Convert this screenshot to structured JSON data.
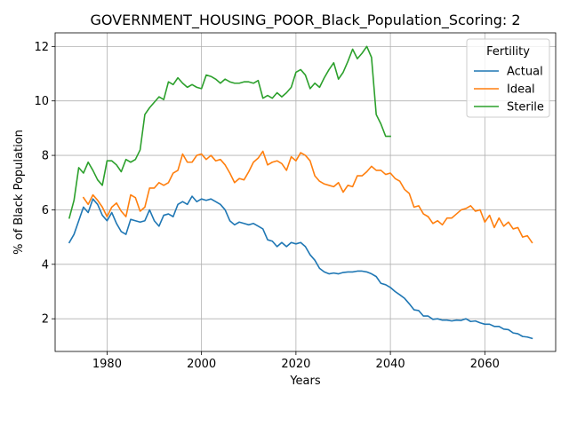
{
  "chart_data": {
    "type": "line",
    "title": "GOVERNMENT_HOUSING_POOR_Black_Population_Scoring: 2",
    "xlabel": "Years",
    "ylabel": "% of Black Population",
    "xlim": [
      1969,
      2075
    ],
    "ylim": [
      0.8,
      12.5
    ],
    "xticks": [
      1980,
      2000,
      2020,
      2040,
      2060
    ],
    "yticks": [
      2,
      4,
      6,
      8,
      10,
      12
    ],
    "grid": true,
    "legend": {
      "title": "Fertility",
      "placement": "top-right"
    },
    "series": [
      {
        "name": "Actual",
        "color": "#1f77b4",
        "x": [
          1972,
          1973,
          1974,
          1975,
          1976,
          1977,
          1978,
          1979,
          1980,
          1981,
          1982,
          1983,
          1984,
          1985,
          1986,
          1987,
          1988,
          1989,
          1990,
          1991,
          1992,
          1993,
          1994,
          1995,
          1996,
          1997,
          1998,
          1999,
          2000,
          2001,
          2002,
          2003,
          2004,
          2005,
          2006,
          2007,
          2008,
          2009,
          2010,
          2011,
          2012,
          2013,
          2014,
          2015,
          2016,
          2017,
          2018,
          2019,
          2020,
          2021,
          2022,
          2023,
          2024,
          2025,
          2026,
          2027,
          2028,
          2029,
          2030,
          2031,
          2032,
          2033,
          2034,
          2035,
          2036,
          2037,
          2038,
          2039,
          2040,
          2041,
          2042,
          2043,
          2044,
          2045,
          2046,
          2047,
          2048,
          2049,
          2050,
          2051,
          2052,
          2053,
          2054,
          2055,
          2056,
          2057,
          2058,
          2059,
          2060,
          2061,
          2062,
          2063,
          2064,
          2065,
          2066,
          2067,
          2068,
          2069,
          2070
        ],
        "y": [
          4.8,
          5.1,
          5.6,
          6.1,
          5.9,
          6.4,
          6.2,
          5.8,
          5.6,
          5.9,
          5.5,
          5.2,
          5.1,
          5.65,
          5.6,
          5.55,
          5.6,
          6.0,
          5.6,
          5.4,
          5.8,
          5.85,
          5.75,
          6.2,
          6.3,
          6.2,
          6.5,
          6.3,
          6.4,
          6.35,
          6.4,
          6.3,
          6.2,
          6.0,
          5.6,
          5.45,
          5.55,
          5.5,
          5.45,
          5.5,
          5.4,
          5.3,
          4.9,
          4.85,
          4.65,
          4.8,
          4.65,
          4.8,
          4.75,
          4.8,
          4.65,
          4.35,
          4.15,
          3.85,
          3.72,
          3.65,
          3.68,
          3.65,
          3.7,
          3.72,
          3.72,
          3.75,
          3.75,
          3.72,
          3.65,
          3.55,
          3.3,
          3.25,
          3.15,
          3.0,
          2.88,
          2.75,
          2.55,
          2.33,
          2.3,
          2.1,
          2.1,
          1.98,
          2.0,
          1.95,
          1.95,
          1.92,
          1.95,
          1.94,
          2.0,
          1.9,
          1.92,
          1.85,
          1.8,
          1.8,
          1.72,
          1.72,
          1.62,
          1.6,
          1.48,
          1.45,
          1.35,
          1.33,
          1.28
        ]
      },
      {
        "name": "Ideal",
        "color": "#ff7f0e",
        "x": [
          1975,
          1976,
          1977,
          1978,
          1979,
          1980,
          1981,
          1982,
          1983,
          1984,
          1985,
          1986,
          1987,
          1988,
          1989,
          1990,
          1991,
          1992,
          1993,
          1994,
          1995,
          1996,
          1997,
          1998,
          1999,
          2000,
          2001,
          2002,
          2003,
          2004,
          2005,
          2006,
          2007,
          2008,
          2009,
          2010,
          2011,
          2012,
          2013,
          2014,
          2015,
          2016,
          2017,
          2018,
          2019,
          2020,
          2021,
          2022,
          2023,
          2024,
          2025,
          2026,
          2027,
          2028,
          2029,
          2030,
          2031,
          2032,
          2033,
          2034,
          2035,
          2036,
          2037,
          2038,
          2039,
          2040,
          2041,
          2042,
          2043,
          2044,
          2045,
          2046,
          2047,
          2048,
          2049,
          2050,
          2051,
          2052,
          2053,
          2054,
          2055,
          2056,
          2057,
          2058,
          2059,
          2060,
          2061,
          2062,
          2063,
          2064,
          2065,
          2066,
          2067,
          2068,
          2069,
          2070
        ],
        "y": [
          6.45,
          6.2,
          6.55,
          6.35,
          6.1,
          5.75,
          6.1,
          6.25,
          5.95,
          5.75,
          6.55,
          6.45,
          5.95,
          6.1,
          6.8,
          6.8,
          7.0,
          6.9,
          7.0,
          7.35,
          7.45,
          8.05,
          7.75,
          7.75,
          8.0,
          8.05,
          7.85,
          8.0,
          7.8,
          7.85,
          7.65,
          7.35,
          7.0,
          7.15,
          7.1,
          7.4,
          7.75,
          7.9,
          8.15,
          7.65,
          7.75,
          7.8,
          7.7,
          7.45,
          7.95,
          7.8,
          8.1,
          8.0,
          7.8,
          7.25,
          7.05,
          6.95,
          6.9,
          6.85,
          7.0,
          6.65,
          6.9,
          6.85,
          7.25,
          7.25,
          7.4,
          7.6,
          7.45,
          7.45,
          7.3,
          7.35,
          7.15,
          7.05,
          6.75,
          6.6,
          6.1,
          6.15,
          5.85,
          5.75,
          5.5,
          5.6,
          5.45,
          5.7,
          5.7,
          5.85,
          6.0,
          6.05,
          6.15,
          5.95,
          6.0,
          5.55,
          5.8,
          5.35,
          5.7,
          5.4,
          5.55,
          5.3,
          5.35,
          5.0,
          5.05,
          4.8
        ]
      },
      {
        "name": "Sterile",
        "color": "#2ca02c",
        "x": [
          1972,
          1973,
          1974,
          1975,
          1976,
          1977,
          1978,
          1979,
          1980,
          1981,
          1982,
          1983,
          1984,
          1985,
          1986,
          1987,
          1988,
          1989,
          1990,
          1991,
          1992,
          1993,
          1994,
          1995,
          1996,
          1997,
          1998,
          1999,
          2000,
          2001,
          2002,
          2003,
          2004,
          2005,
          2006,
          2007,
          2008,
          2009,
          2010,
          2011,
          2012,
          2013,
          2014,
          2015,
          2016,
          2017,
          2018,
          2019,
          2020,
          2021,
          2022,
          2023,
          2024,
          2025,
          2026,
          2027,
          2028,
          2029,
          2030,
          2031,
          2032,
          2033,
          2034,
          2035,
          2036,
          2037,
          2038,
          2039,
          2040
        ],
        "y": [
          5.7,
          6.35,
          7.55,
          7.35,
          7.75,
          7.45,
          7.1,
          6.9,
          7.8,
          7.8,
          7.65,
          7.4,
          7.85,
          7.75,
          7.85,
          8.2,
          9.5,
          9.75,
          9.95,
          10.15,
          10.05,
          10.7,
          10.6,
          10.85,
          10.65,
          10.5,
          10.6,
          10.5,
          10.45,
          10.95,
          10.9,
          10.8,
          10.65,
          10.8,
          10.7,
          10.65,
          10.65,
          10.7,
          10.7,
          10.65,
          10.75,
          10.1,
          10.2,
          10.1,
          10.3,
          10.15,
          10.3,
          10.5,
          11.05,
          11.15,
          10.95,
          10.45,
          10.65,
          10.5,
          10.85,
          11.15,
          11.4,
          10.8,
          11.05,
          11.45,
          11.9,
          11.55,
          11.75,
          12.0,
          11.6,
          9.5,
          9.15,
          8.7,
          8.7
        ]
      }
    ]
  }
}
